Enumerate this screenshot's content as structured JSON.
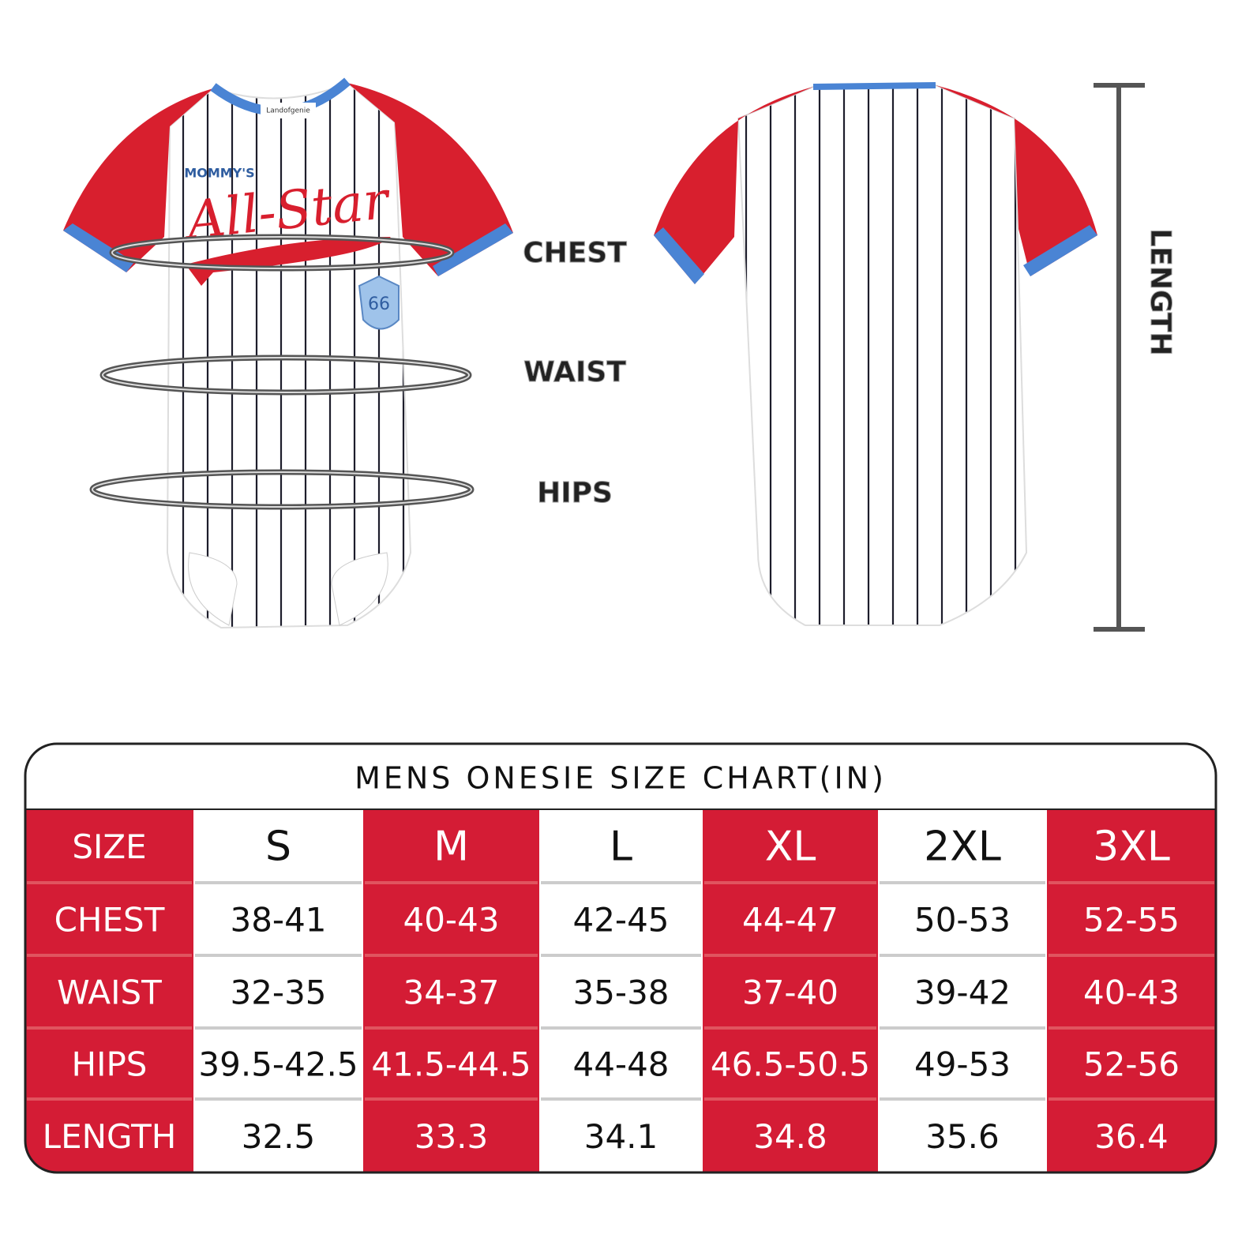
{
  "illustration": {
    "brand": "Landofgenie",
    "script_small": "MOMMY'S",
    "script_large": "All-Star",
    "patch_number": "66",
    "labels": [
      "CHEST",
      "WAIST",
      "HIPS"
    ],
    "length_label": "LENGTH"
  },
  "table": {
    "title": "MENS ONESIE SIZE CHART(IN)",
    "header": [
      "SIZE",
      "S",
      "M",
      "L",
      "XL",
      "2XL",
      "3XL"
    ],
    "rows": [
      [
        "CHEST",
        "38-41",
        "40-43",
        "42-45",
        "44-47",
        "50-53",
        "52-55"
      ],
      [
        "WAIST",
        "32-35",
        "34-37",
        "35-38",
        "37-40",
        "39-42",
        "40-43"
      ],
      [
        "HIPS",
        "39.5-42.5",
        "41.5-44.5",
        "44-48",
        "46.5-50.5",
        "49-53",
        "52-56"
      ],
      [
        "LENGTH",
        "32.5",
        "33.3",
        "34.1",
        "34.8",
        "35.6",
        "36.4"
      ]
    ]
  }
}
